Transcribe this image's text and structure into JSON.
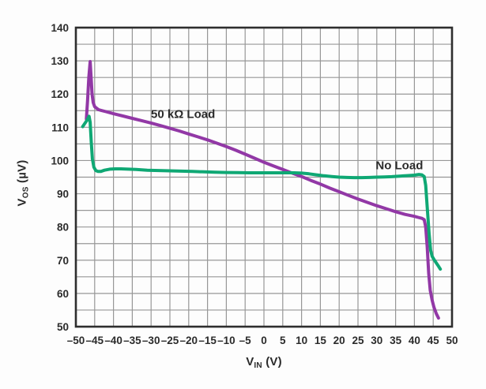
{
  "chart_data": {
    "type": "line",
    "title": "",
    "xlabel": {
      "main": "V",
      "sub": "IN",
      "unit": " (V)"
    },
    "ylabel": {
      "main": "V",
      "sub": "OS",
      "unit": " (µV)"
    },
    "x_range": [
      -50,
      50
    ],
    "y_range": [
      50,
      140
    ],
    "x_tick_step": 5,
    "y_tick_step": 10,
    "grid_step": 5,
    "grid": true,
    "legend_position": "inline-annotations",
    "colors": {
      "grid": "#979797",
      "frame": "#2e2e2e",
      "text": "#2b2b2b",
      "plot_bg": "#fdfdfd",
      "purple": "#9238A6",
      "green": "#0FA874"
    },
    "series": [
      {
        "name": "50 kΩ Load",
        "color": "#9238A6",
        "points": [
          [
            -47.2,
            112.5
          ],
          [
            -46.9,
            118.0
          ],
          [
            -46.55,
            125.0
          ],
          [
            -46.2,
            129.8
          ],
          [
            -45.95,
            125.0
          ],
          [
            -45.7,
            120.0
          ],
          [
            -45.4,
            117.5
          ],
          [
            -45.0,
            116.2
          ],
          [
            -44.0,
            115.3
          ],
          [
            -42.0,
            114.7
          ],
          [
            -40.0,
            114.1
          ],
          [
            -37.5,
            113.4
          ],
          [
            -35.0,
            112.7
          ],
          [
            -32.5,
            112.0
          ],
          [
            -30.0,
            111.3
          ],
          [
            -27.5,
            110.5
          ],
          [
            -25.0,
            109.7
          ],
          [
            -22.5,
            108.9
          ],
          [
            -20.0,
            108.0
          ],
          [
            -17.5,
            107.1
          ],
          [
            -15.0,
            106.2
          ],
          [
            -12.5,
            105.2
          ],
          [
            -10.0,
            104.2
          ],
          [
            -7.5,
            103.1
          ],
          [
            -5.0,
            101.9
          ],
          [
            -2.5,
            100.7
          ],
          [
            0.0,
            99.5
          ],
          [
            2.5,
            98.4
          ],
          [
            5.0,
            97.3
          ],
          [
            7.5,
            96.2
          ],
          [
            10.0,
            95.2
          ],
          [
            12.5,
            94.0
          ],
          [
            15.0,
            92.9
          ],
          [
            17.5,
            91.7
          ],
          [
            20.0,
            90.6
          ],
          [
            22.5,
            89.5
          ],
          [
            25.0,
            88.4
          ],
          [
            27.5,
            87.4
          ],
          [
            30.0,
            86.4
          ],
          [
            32.5,
            85.5
          ],
          [
            35.0,
            84.6
          ],
          [
            37.5,
            83.8
          ],
          [
            40.0,
            83.2
          ],
          [
            41.0,
            82.9
          ],
          [
            42.0,
            82.6
          ],
          [
            42.6,
            82.2
          ],
          [
            43.0,
            80.0
          ],
          [
            43.4,
            74.0
          ],
          [
            43.8,
            66.0
          ],
          [
            44.2,
            61.0
          ],
          [
            44.7,
            58.0
          ],
          [
            45.2,
            55.8
          ],
          [
            45.8,
            54.0
          ],
          [
            46.4,
            52.6
          ]
        ]
      },
      {
        "name": "No Load",
        "color": "#0FA874",
        "points": [
          [
            -48.2,
            110.2
          ],
          [
            -47.6,
            111.2
          ],
          [
            -47.0,
            112.2
          ],
          [
            -46.5,
            113.3
          ],
          [
            -46.2,
            111.5
          ],
          [
            -45.9,
            105.5
          ],
          [
            -45.6,
            100.5
          ],
          [
            -45.2,
            98.0
          ],
          [
            -44.7,
            97.0
          ],
          [
            -44.1,
            96.7
          ],
          [
            -43.4,
            96.7
          ],
          [
            -42.4,
            97.1
          ],
          [
            -41.0,
            97.4
          ],
          [
            -39.5,
            97.5
          ],
          [
            -38.0,
            97.5
          ],
          [
            -36.0,
            97.4
          ],
          [
            -34.0,
            97.3
          ],
          [
            -31.0,
            97.1
          ],
          [
            -28.0,
            97.0
          ],
          [
            -25.0,
            96.9
          ],
          [
            -22.0,
            96.8
          ],
          [
            -19.0,
            96.7
          ],
          [
            -16.0,
            96.6
          ],
          [
            -13.0,
            96.5
          ],
          [
            -10.0,
            96.4
          ],
          [
            -7.0,
            96.35
          ],
          [
            -4.0,
            96.3
          ],
          [
            -1.0,
            96.3
          ],
          [
            2.0,
            96.3
          ],
          [
            5.0,
            96.3
          ],
          [
            8.0,
            96.3
          ],
          [
            10.0,
            96.2
          ],
          [
            12.0,
            96.0
          ],
          [
            14.0,
            95.7
          ],
          [
            16.0,
            95.4
          ],
          [
            18.0,
            95.2
          ],
          [
            20.0,
            95.0
          ],
          [
            22.0,
            94.9
          ],
          [
            24.0,
            94.85
          ],
          [
            26.0,
            94.85
          ],
          [
            28.0,
            94.9
          ],
          [
            30.0,
            95.0
          ],
          [
            32.0,
            95.05
          ],
          [
            34.0,
            95.15
          ],
          [
            36.0,
            95.3
          ],
          [
            38.0,
            95.45
          ],
          [
            40.0,
            95.6
          ],
          [
            41.2,
            95.8
          ],
          [
            42.0,
            95.7
          ],
          [
            42.6,
            95.2
          ],
          [
            43.0,
            92.5
          ],
          [
            43.4,
            86.0
          ],
          [
            43.9,
            78.0
          ],
          [
            44.3,
            73.0
          ],
          [
            44.7,
            71.2
          ],
          [
            45.2,
            70.2
          ],
          [
            45.8,
            69.2
          ],
          [
            46.4,
            68.2
          ],
          [
            46.9,
            67.3
          ]
        ]
      }
    ],
    "annotations": [
      {
        "text": "50 kΩ Load",
        "x": -21.5,
        "y": 114.0
      },
      {
        "text": "No Load",
        "x": 36.0,
        "y": 98.6
      }
    ]
  }
}
